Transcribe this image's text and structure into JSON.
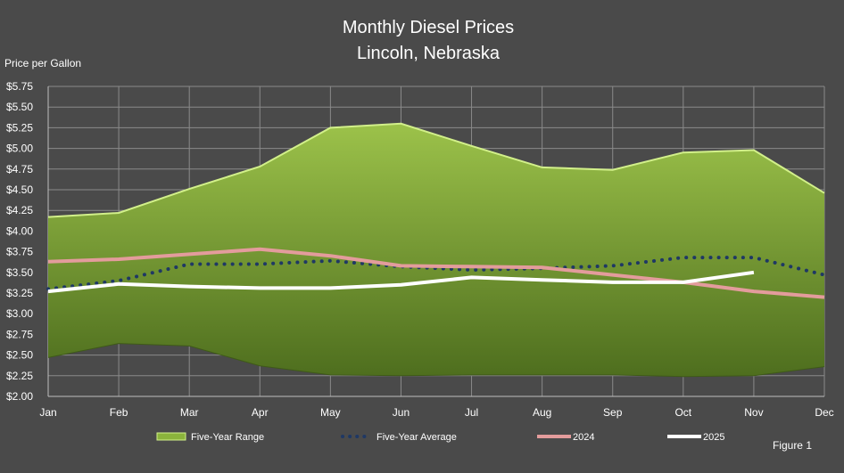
{
  "chart_data": {
    "type": "area",
    "title": "Monthly Diesel Prices",
    "subtitle": "Lincoln, Nebraska",
    "ylabel": "Price per Gallon",
    "xlabel": "",
    "figure_label": "Figure 1",
    "categories": [
      "Jan",
      "Feb",
      "Mar",
      "Apr",
      "May",
      "Jun",
      "Jul",
      "Aug",
      "Sep",
      "Oct",
      "Nov",
      "Dec"
    ],
    "yticks": [
      "$2.00",
      "$2.25",
      "$2.50",
      "$2.75",
      "$3.00",
      "$3.25",
      "$3.50",
      "$3.75",
      "$4.00",
      "$4.25",
      "$4.50",
      "$4.75",
      "$5.00",
      "$5.25",
      "$5.50",
      "$5.75"
    ],
    "ylim": [
      2.0,
      5.75
    ],
    "grid": true,
    "legend_position": "bottom",
    "series": [
      {
        "name": "Five-Year Range",
        "kind": "range",
        "color": "#8bb33c",
        "high": [
          4.17,
          4.22,
          4.51,
          4.78,
          5.25,
          5.3,
          5.03,
          4.77,
          4.74,
          4.95,
          4.98,
          4.46
        ],
        "low": [
          2.47,
          2.64,
          2.61,
          2.37,
          2.26,
          2.25,
          2.26,
          2.26,
          2.26,
          2.24,
          2.25,
          2.36
        ]
      },
      {
        "name": "Five-Year Average",
        "kind": "dotted",
        "color": "#1f3864",
        "values": [
          3.3,
          3.4,
          3.6,
          3.6,
          3.64,
          3.57,
          3.53,
          3.55,
          3.58,
          3.68,
          3.68,
          3.47
        ]
      },
      {
        "name": "2024",
        "kind": "line",
        "color": "#e39c9c",
        "values": [
          3.63,
          3.66,
          3.72,
          3.78,
          3.7,
          3.58,
          3.57,
          3.56,
          3.47,
          3.38,
          3.27,
          3.2
        ]
      },
      {
        "name": "2025",
        "kind": "line",
        "color": "#ffffff",
        "values": [
          3.27,
          3.36,
          3.33,
          3.31,
          3.31,
          3.35,
          3.44,
          3.41,
          3.38,
          3.38,
          3.5,
          null
        ]
      }
    ]
  }
}
